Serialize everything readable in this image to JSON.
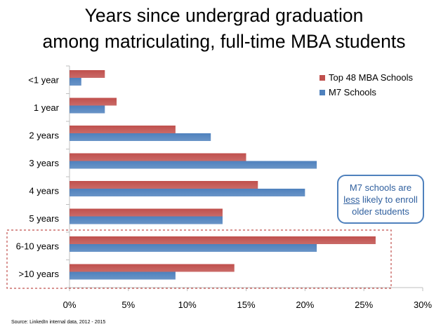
{
  "title": {
    "line1": "Years since undergrad graduation",
    "line2": "among matriculating, full-time MBA students"
  },
  "callout": {
    "text_pre": "M7 schools are",
    "underlined": "less",
    "text_post": " likely to enroll older students"
  },
  "source": "Source: LinkedIn internal data, 2012 - 2015",
  "colors": {
    "top48": "#c0504d",
    "m7": "#4f81bd",
    "highlight_box": "#c0504d",
    "axis": "#bfbfbf"
  },
  "chart_data": {
    "type": "bar",
    "orientation": "horizontal",
    "categories": [
      "<1 year",
      "1 year",
      "2 years",
      "3 years",
      "4 years",
      "5 years",
      "6-10 years",
      ">10 years"
    ],
    "series": [
      {
        "name": "Top 48 MBA Schools",
        "values": [
          3,
          4,
          9,
          15,
          16,
          13,
          26,
          14
        ]
      },
      {
        "name": "M7 Schools",
        "values": [
          1,
          3,
          12,
          21,
          20,
          13,
          21,
          9
        ]
      }
    ],
    "xlim": [
      0,
      30
    ],
    "xticks": [
      0,
      5,
      10,
      15,
      20,
      25,
      30
    ],
    "tick_suffix": "%",
    "legend": "top-right",
    "highlighted_categories": [
      "6-10 years",
      ">10 years"
    ],
    "grid": false
  }
}
